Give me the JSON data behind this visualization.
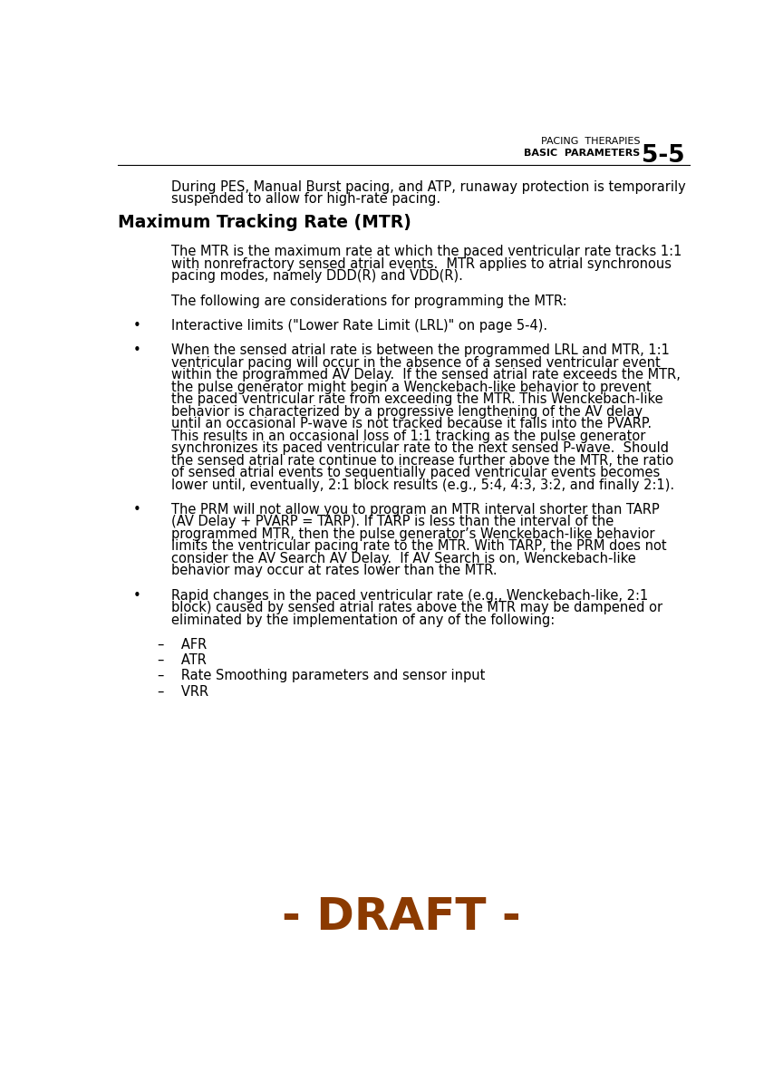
{
  "background_color": "#ffffff",
  "header_left_line1": "PACING  THERAPIES",
  "header_left_line2": "BASIC  PARAMETERS",
  "header_right": "5-5",
  "intro_text": "During PES, Manual Burst pacing, and ATP, runaway protection is temporarily\nsuspended to allow for high-rate pacing.",
  "section_title": "Maximum Tracking Rate (MTR)",
  "paragraphs": [
    "The MTR is the maximum rate at which the paced ventricular rate tracks 1:1\nwith nonrefractory sensed atrial events.  MTR applies to atrial synchronous\npacing modes, namely DDD(R) and VDD(R).",
    "The following are considerations for programming the MTR:"
  ],
  "bullets": [
    {
      "text": "Interactive limits (\"Lower Rate Limit (LRL)\" on page 5-4)."
    },
    {
      "text": "When the sensed atrial rate is between the programmed LRL and MTR, 1:1\nventricular pacing will occur in the absence of a sensed ventricular event\nwithin the programmed AV Delay.  If the sensed atrial rate exceeds the MTR,\nthe pulse generator might begin a Wenckebach-like behavior to prevent\nthe paced ventricular rate from exceeding the MTR. This Wenckebach-like\nbehavior is characterized by a progressive lengthening of the AV delay\nuntil an occasional P-wave is not tracked because it falls into the PVARP.\nThis results in an occasional loss of 1:1 tracking as the pulse generator\nsynchronizes its paced ventricular rate to the next sensed P-wave.  Should\nthe sensed atrial rate continue to increase further above the MTR, the ratio\nof sensed atrial events to sequentially paced ventricular events becomes\nlower until, eventually, 2:1 block results (e.g., 5:4, 4:3, 3:2, and finally 2:1)."
    },
    {
      "text": "The PRM will not allow you to program an MTR interval shorter than TARP\n(AV Delay + PVARP = TARP). If TARP is less than the interval of the\nprogrammed MTR, then the pulse generator’s Wenckebach-like behavior\nlimits the ventricular pacing rate to the MTR. With TARP, the PRM does not\nconsider the AV Search AV Delay.  If AV Search is on, Wenckebach-like\nbehavior may occur at rates lower than the MTR."
    },
    {
      "text": "Rapid changes in the paced ventricular rate (e.g., Wenckebach-like, 2:1\nblock) caused by sensed atrial rates above the MTR may be dampened or\neliminated by the implementation of any of the following:"
    }
  ],
  "sub_bullets": [
    "–    AFR",
    "–    ATR",
    "–    Rate Smoothing parameters and sensor input",
    "–    VRR"
  ],
  "draft_text": "- DRAFT -",
  "draft_color": "#8B3A00",
  "text_color": "#000000",
  "header_color": "#000000",
  "body_font_size": 10.5,
  "title_font_size": 13.5,
  "header_font_size": 8.0,
  "draft_font_size": 36
}
